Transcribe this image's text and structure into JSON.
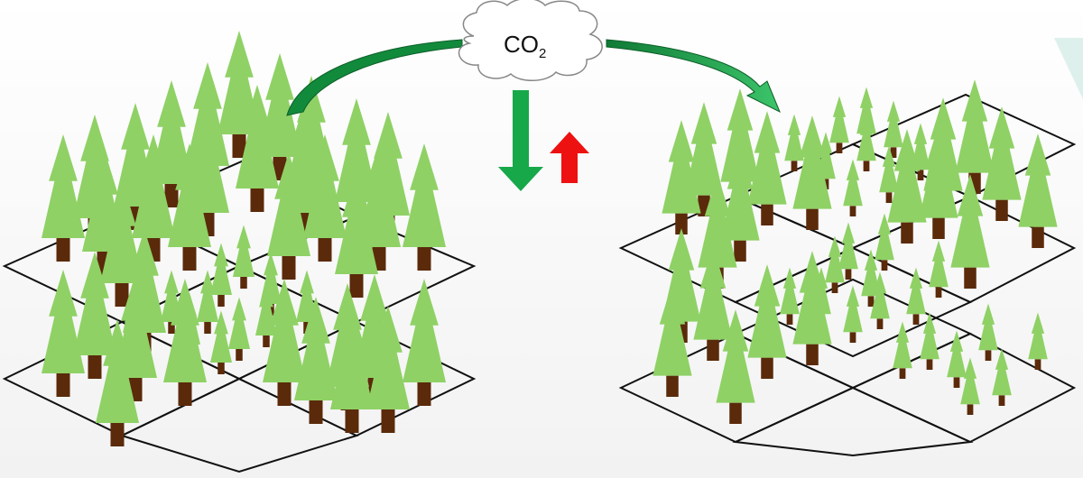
{
  "cloud": {
    "label": "CO",
    "subscript": "2"
  },
  "colors": {
    "tree_foliage": "#8fd165",
    "tree_trunk": "#5a2a0a",
    "grid_line": "#111111",
    "flow_arrow": "#1e9a44",
    "sink_arrow": "#17a84a",
    "source_arrow": "#ee1111",
    "cloud_fill": "#ffffff",
    "cloud_stroke": "#888888"
  },
  "icons": {
    "cloud": "cloud-icon",
    "flow_left": "curved-arrow-icon",
    "flow_right": "curved-arrow-icon",
    "sink": "arrow-down-icon",
    "source": "arrow-up-icon",
    "tree": "pine-tree-icon"
  },
  "panels": [
    {
      "name": "forest-panel-left"
    },
    {
      "name": "forest-panel-right"
    }
  ]
}
